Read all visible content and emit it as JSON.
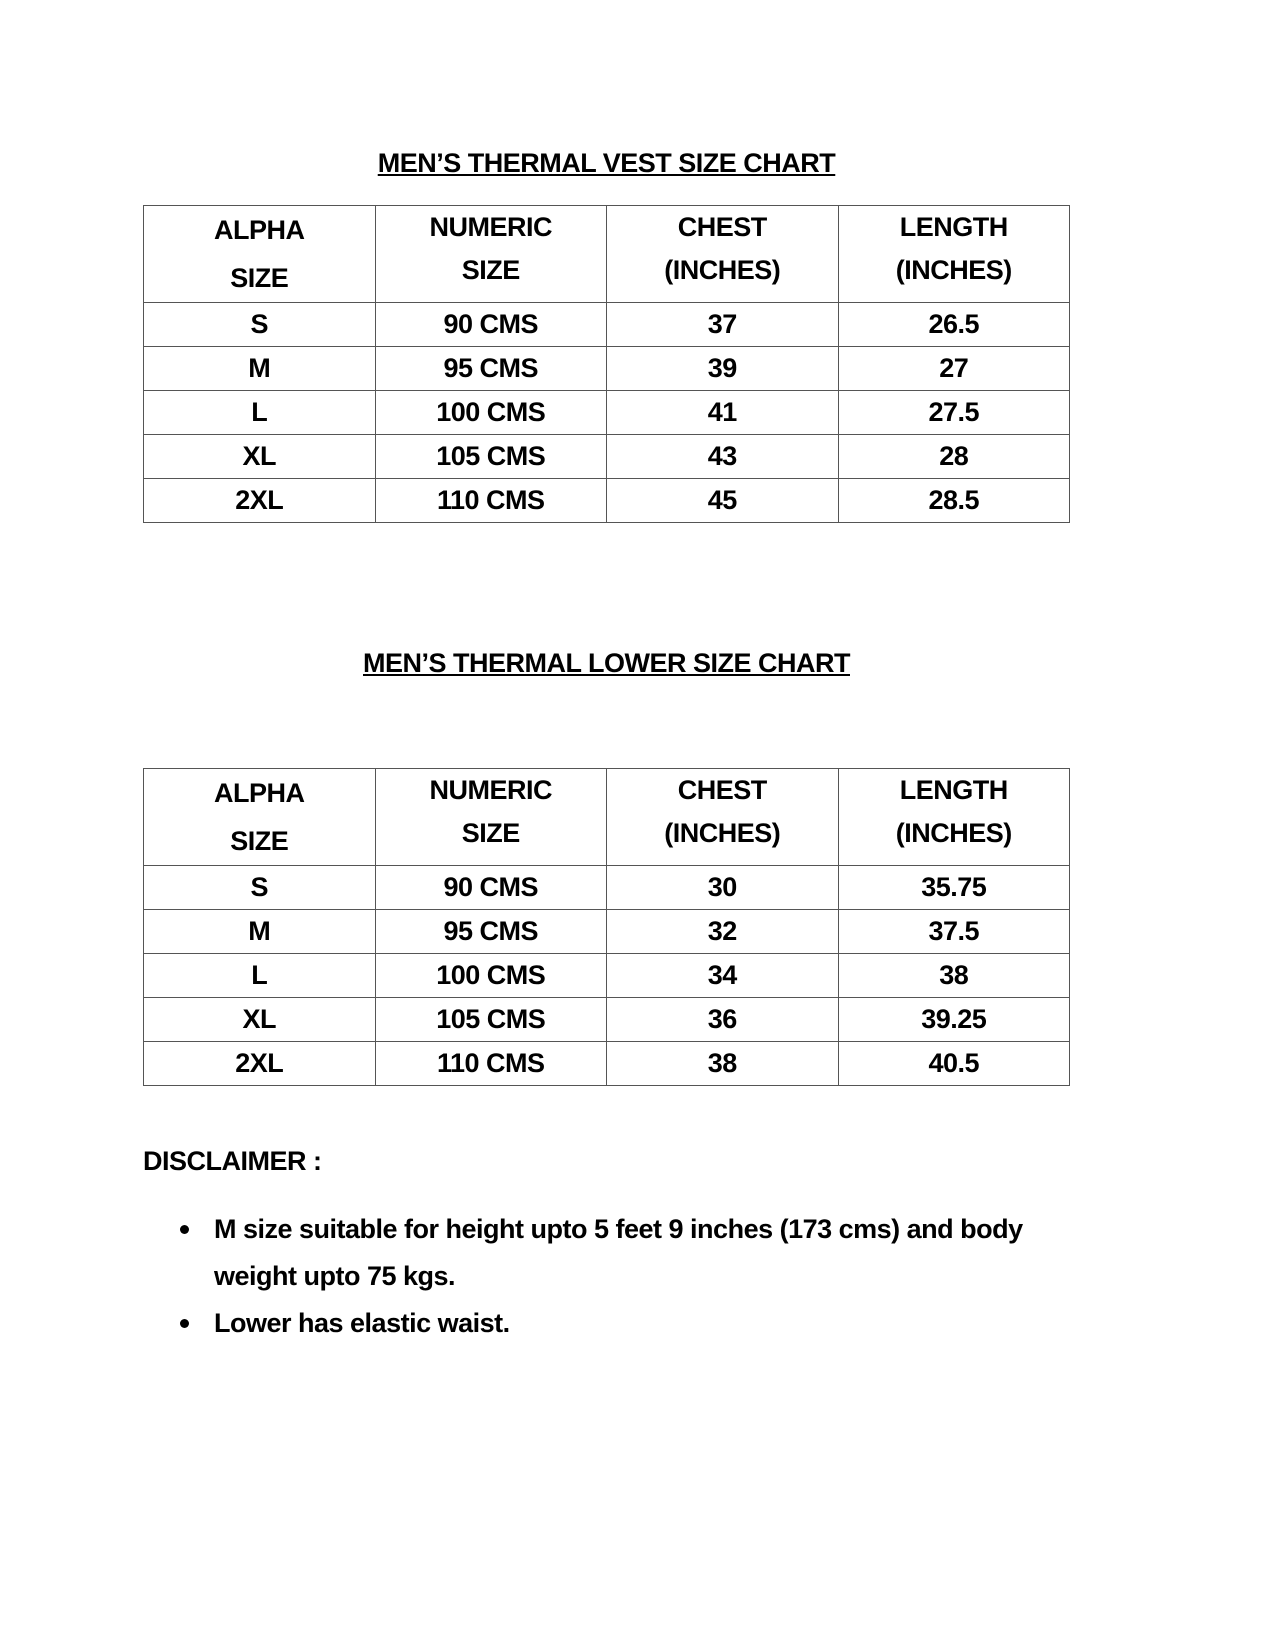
{
  "vest": {
    "title": "MEN’S THERMAL VEST SIZE CHART",
    "headers": [
      "ALPHA SIZE",
      "NUMERIC SIZE",
      "CHEST (INCHES)",
      "LENGTH (INCHES)"
    ],
    "rows": [
      [
        "S",
        "90 CMS",
        "37",
        "26.5"
      ],
      [
        "M",
        "95 CMS",
        "39",
        "27"
      ],
      [
        "L",
        "100 CMS",
        "41",
        "27.5"
      ],
      [
        "XL",
        "105 CMS",
        "43",
        "28"
      ],
      [
        "2XL",
        "110 CMS",
        "45",
        "28.5"
      ]
    ]
  },
  "lower": {
    "title": "MEN’S THERMAL LOWER SIZE CHART",
    "headers": [
      "ALPHA SIZE",
      "NUMERIC SIZE",
      "CHEST (INCHES)",
      "LENGTH (INCHES)"
    ],
    "rows": [
      [
        "S",
        "90 CMS",
        "30",
        "35.75"
      ],
      [
        "M",
        "95 CMS",
        "32",
        "37.5"
      ],
      [
        "L",
        "100 CMS",
        "34",
        "38"
      ],
      [
        "XL",
        "105 CMS",
        "36",
        "39.25"
      ],
      [
        "2XL",
        "110 CMS",
        "38",
        "40.5"
      ]
    ]
  },
  "disclaimer": {
    "heading": "DISCLAIMER :",
    "items": [
      "M size suitable for height upto 5 feet 9 inches (173 cms) and body weight upto 75 kgs.",
      "Lower has elastic waist."
    ]
  }
}
